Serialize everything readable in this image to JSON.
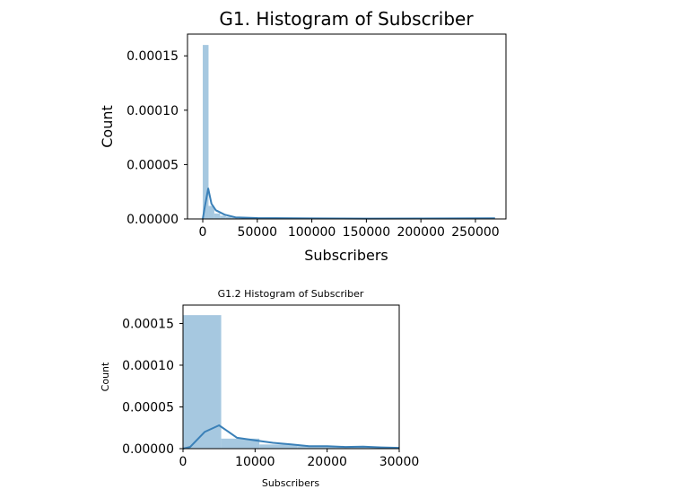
{
  "chart_data": [
    {
      "type": "bar",
      "title": "G1. Histogram of Subscriber",
      "xlabel": "Subscribers",
      "ylabel": "Count",
      "xlim": [
        -14000,
        278000
      ],
      "ylim": [
        0,
        0.00017
      ],
      "xticks": [
        0,
        50000,
        100000,
        150000,
        200000,
        250000
      ],
      "xtick_labels": [
        "0",
        "50000",
        "100000",
        "150000",
        "200000",
        "250000"
      ],
      "yticks": [
        0,
        5e-05,
        0.0001,
        0.00015
      ],
      "ytick_labels": [
        "0.00000",
        "0.00005",
        "0.00010",
        "0.00015"
      ],
      "bar_color": "#a6c8e0",
      "line_color": "#3a80b8",
      "bins": [
        {
          "x0": 0,
          "x1": 5300,
          "value": 0.00016
        },
        {
          "x0": 5300,
          "x1": 10600,
          "value": 1.2e-05
        },
        {
          "x0": 10600,
          "x1": 15900,
          "value": 5e-06
        },
        {
          "x0": 15900,
          "x1": 21200,
          "value": 3e-06
        },
        {
          "x0": 21200,
          "x1": 26500,
          "value": 2e-06
        },
        {
          "x0": 26500,
          "x1": 31800,
          "value": 1.5e-06
        }
      ],
      "kde": [
        [
          0,
          0.0
        ],
        [
          2000,
          1.2e-05
        ],
        [
          5000,
          2.8e-05
        ],
        [
          8000,
          1.4e-05
        ],
        [
          12000,
          8e-06
        ],
        [
          20000,
          4e-06
        ],
        [
          30000,
          1.5e-06
        ],
        [
          50000,
          8e-07
        ],
        [
          100000,
          5e-07
        ],
        [
          150000,
          3e-07
        ],
        [
          200000,
          4e-07
        ],
        [
          268000,
          6e-07
        ]
      ],
      "grid": false
    },
    {
      "type": "bar",
      "title": "G1.2 Histogram of Subscriber",
      "xlabel": "Subscribers",
      "ylabel": "Count",
      "xlim": [
        0,
        30000
      ],
      "ylim": [
        0,
        0.000172
      ],
      "xticks": [
        0,
        10000,
        20000,
        30000
      ],
      "xtick_labels": [
        "0",
        "10000",
        "20000",
        "30000"
      ],
      "yticks": [
        0,
        5e-05,
        0.0001,
        0.00015
      ],
      "ytick_labels": [
        "0.00000",
        "0.00005",
        "0.00010",
        "0.00015"
      ],
      "bar_color": "#a6c8e0",
      "line_color": "#3a80b8",
      "bins": [
        {
          "x0": 0,
          "x1": 5300,
          "value": 0.00016
        },
        {
          "x0": 5300,
          "x1": 10600,
          "value": 1.2e-05
        },
        {
          "x0": 10600,
          "x1": 15900,
          "value": 5e-06
        },
        {
          "x0": 15900,
          "x1": 21200,
          "value": 3e-06
        },
        {
          "x0": 21200,
          "x1": 26500,
          "value": 2e-06
        },
        {
          "x0": 26500,
          "x1": 31800,
          "value": 1.5e-06
        }
      ],
      "kde": [
        [
          0,
          0.0
        ],
        [
          1000,
          2e-06
        ],
        [
          3000,
          2e-05
        ],
        [
          5000,
          2.8e-05
        ],
        [
          7500,
          1.3e-05
        ],
        [
          10000,
          1e-05
        ],
        [
          12500,
          7e-06
        ],
        [
          15000,
          5e-06
        ],
        [
          17500,
          3e-06
        ],
        [
          20000,
          3e-06
        ],
        [
          22500,
          2e-06
        ],
        [
          25000,
          2.5e-06
        ],
        [
          27500,
          1.5e-06
        ],
        [
          30000,
          1e-06
        ]
      ],
      "grid": false
    }
  ]
}
